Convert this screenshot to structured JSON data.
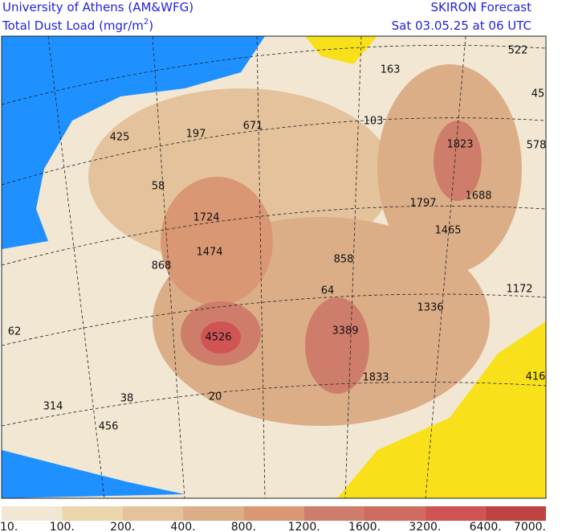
{
  "header": {
    "institution": "University of Athens (AM&WFG)",
    "title_main": "Total Dust Load (mgr/m",
    "title_sup": "2",
    "title_end": ")",
    "product": "SKIRON Forecast",
    "valid_time": "Sat 03.05.25 at 06 UTC"
  },
  "map": {
    "labels": [
      "163",
      "522",
      "45",
      "103",
      "425",
      "197",
      "671",
      "1823",
      "578",
      "58",
      "1797",
      "1688",
      "1724",
      "1465",
      "1474",
      "868",
      "858",
      "1172",
      "64",
      "1336",
      "62",
      "3389",
      "4526",
      "1833",
      "416",
      "38",
      "20",
      "314",
      "456"
    ]
  },
  "colorbar": {
    "colors": [
      "#f1e7d3",
      "#ebd6ad",
      "#e4c39c",
      "#dbae88",
      "#d99774",
      "#cf7d6b",
      "#cd6c5f",
      "#d05453",
      "#bd4440"
    ],
    "labels": [
      "10.",
      "100.",
      "200.",
      "400.",
      "800.",
      "1200.",
      "1600.",
      "3200.",
      "6400.",
      "7000."
    ]
  }
}
